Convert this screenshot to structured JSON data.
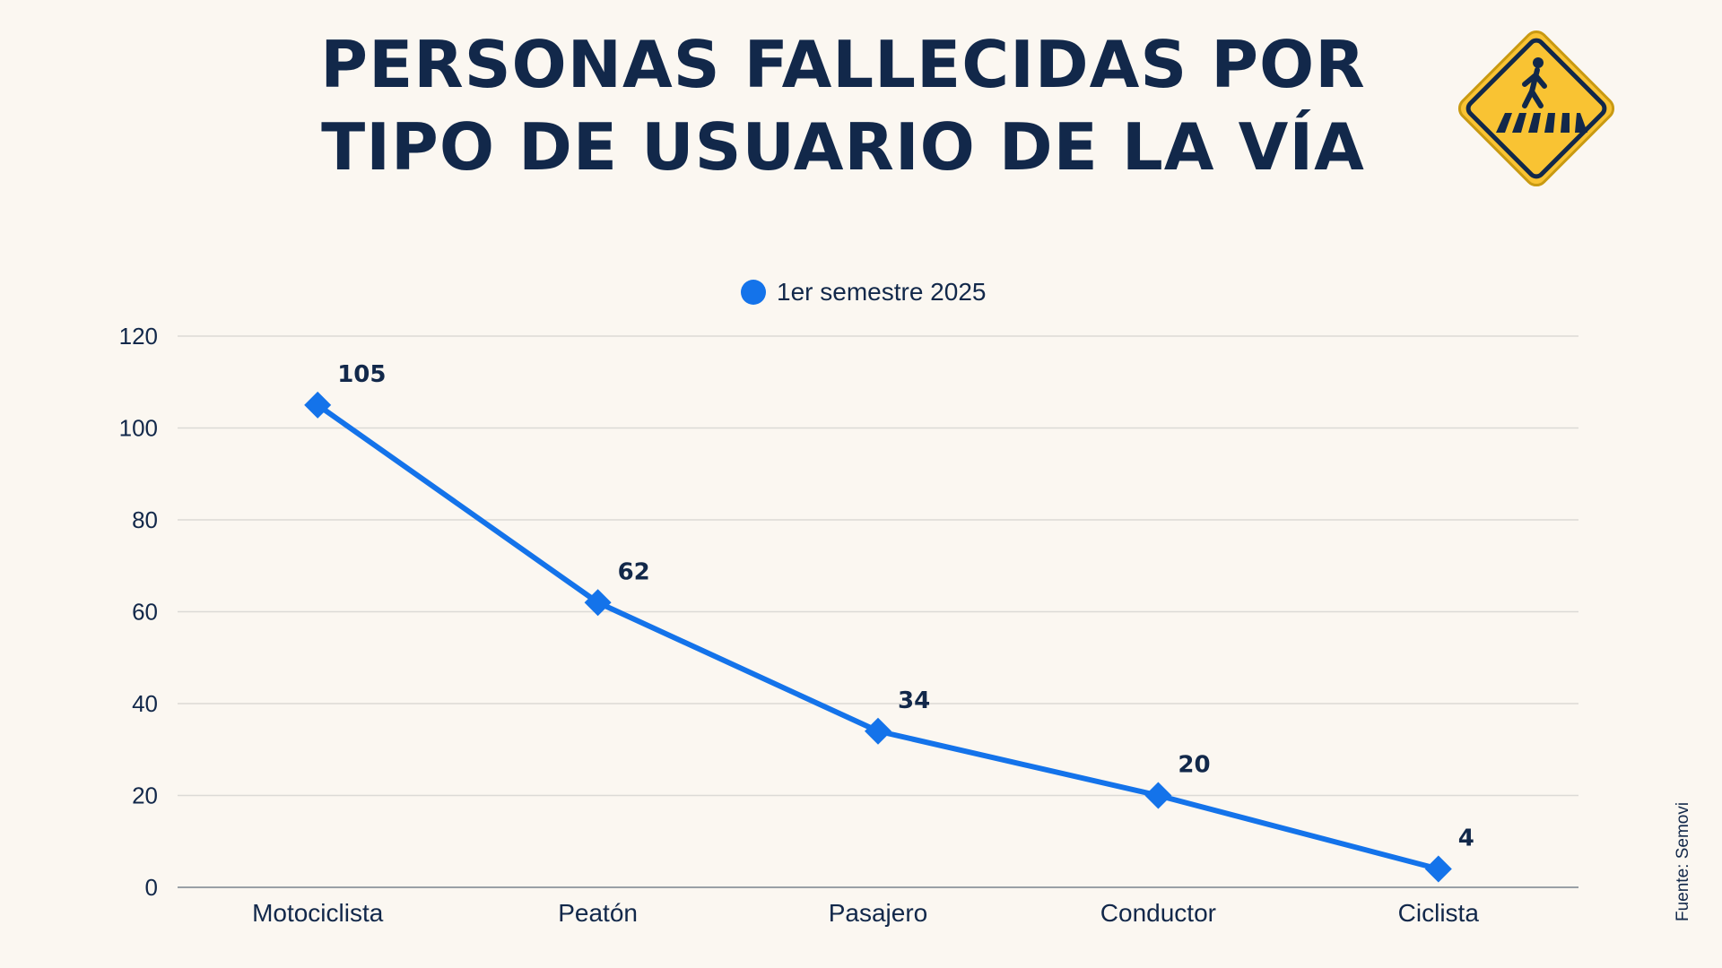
{
  "title": {
    "line1": "PERSONAS FALLECIDAS POR",
    "line2": "TIPO DE USUARIO DE LA VÍA"
  },
  "icon": "pedestrian-crossing-sign-icon",
  "colors": {
    "background": "#fbf7f1",
    "series": "#1473ea",
    "text": "#12284a",
    "sign_fill": "#f9c333"
  },
  "source": "Fuente: Semovi",
  "chart_data": {
    "type": "line",
    "categories": [
      "Motociclista",
      "Peatón",
      "Pasajero",
      "Conductor",
      "Ciclista"
    ],
    "series": [
      {
        "name": "1er semestre 2025",
        "values": [
          105,
          62,
          34,
          20,
          4
        ],
        "marker": "diamond"
      }
    ],
    "ylim": [
      0,
      120
    ],
    "yticks": [
      0,
      20,
      40,
      60,
      80,
      100,
      120
    ],
    "grid": true,
    "legend": "top-center",
    "data_labels": true
  }
}
